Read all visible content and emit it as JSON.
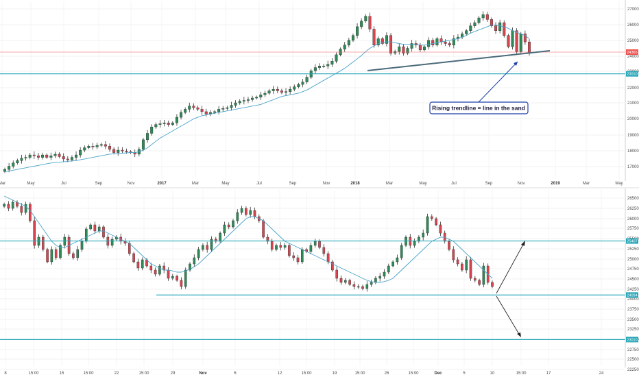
{
  "chart_data": [
    {
      "type": "candlestick",
      "title": "",
      "xlabel": "",
      "ylabel": "",
      "ylim": [
        16500,
        27400
      ],
      "x_axis_labels": [
        "Mar",
        "May",
        "Jul",
        "Sep",
        "Nov",
        "2017",
        "Mar",
        "May",
        "Jul",
        "Sep",
        "Nov",
        "2018",
        "Mar",
        "May",
        "Jul",
        "Sep",
        "Nov",
        "2019",
        "Mar",
        "May"
      ],
      "y_axis_labels": [
        "27000",
        "26000",
        "25000",
        "24000",
        "23000",
        "22000",
        "21000",
        "20000",
        "19000",
        "18000",
        "17000"
      ],
      "series_close": [
        17050,
        17250,
        17450,
        17600,
        17750,
        17800,
        17950,
        17900,
        17800,
        17950,
        17800,
        17900,
        18000,
        17850,
        17700,
        17650,
        17800,
        17950,
        18250,
        18400,
        18500,
        18450,
        18550,
        18600,
        18500,
        18300,
        18100,
        18250,
        18200,
        18150,
        18100,
        18000,
        18300,
        18900,
        19300,
        19700,
        19850,
        19900,
        19950,
        19850,
        19950,
        20300,
        20600,
        20800,
        21000,
        20900,
        20800,
        20650,
        20500,
        20600,
        20650,
        20800,
        20850,
        20900,
        21050,
        21200,
        21300,
        21350,
        21400,
        21500,
        21550,
        21700,
        21800,
        21950,
        22050,
        21950,
        21850,
        21900,
        22050,
        22200,
        22350,
        22500,
        22800,
        23200,
        23400,
        23500,
        23500,
        23600,
        23800,
        24200,
        24550,
        24800,
        25100,
        25400,
        25950,
        26300,
        26600,
        25800,
        24800,
        25200,
        24900,
        25400,
        24300,
        24400,
        24700,
        24300,
        24600,
        24900,
        24800,
        24500,
        24700,
        25100,
        24800,
        25200,
        25000,
        24900,
        24800,
        25200,
        25300,
        25500,
        25700,
        26000,
        26200,
        26500,
        26700,
        26400,
        26000,
        25700,
        26200,
        25400,
        24700,
        25700,
        24400,
        25500,
        25000,
        24300
      ],
      "moving_average": [
        16900,
        16950,
        17000,
        17050,
        17100,
        17150,
        17200,
        17250,
        17300,
        17350,
        17400,
        17450,
        17480,
        17500,
        17520,
        17550,
        17580,
        17600,
        17650,
        17700,
        17750,
        17800,
        17850,
        17900,
        17950,
        18000,
        18020,
        18040,
        18060,
        18080,
        18100,
        18100,
        18150,
        18250,
        18400,
        18600,
        18800,
        19000,
        19150,
        19300,
        19450,
        19600,
        19750,
        19900,
        20050,
        20200,
        20300,
        20400,
        20450,
        20500,
        20550,
        20600,
        20650,
        20700,
        20750,
        20800,
        20850,
        20900,
        20950,
        21000,
        21050,
        21100,
        21200,
        21300,
        21400,
        21500,
        21600,
        21650,
        21700,
        21750,
        21800,
        21900,
        22000,
        22150,
        22300,
        22450,
        22600,
        22750,
        22900,
        23050,
        23200,
        23350,
        23550,
        23750,
        23950,
        24150,
        24400,
        24600,
        24750,
        24900,
        24950,
        25000,
        25000,
        24950,
        24900,
        24850,
        24850,
        24850,
        24850,
        24800,
        24800,
        24850,
        24900,
        24950,
        25000,
        25050,
        25100,
        25150,
        25200,
        25300,
        25400,
        25550,
        25650,
        25750,
        25850,
        25950,
        26050,
        26050,
        26000,
        25950,
        25850,
        25700,
        25600,
        25500,
        25400,
        25200
      ],
      "levels": [
        {
          "label": "24365",
          "value": 24365,
          "color": "#ef5350"
        },
        {
          "label": "23010",
          "value": 23010,
          "color": "#26a6b8"
        }
      ],
      "annotations": [
        {
          "text": "Rising trendline = line in the sand"
        }
      ]
    },
    {
      "type": "candlestick",
      "title": "",
      "xlabel": "",
      "ylabel": "",
      "ylim": [
        22400,
        26600
      ],
      "x_axis_labels": [
        "8",
        "15:00",
        "15",
        "15:00",
        "22",
        "15:00",
        "29",
        "Nov",
        "6",
        "12",
        "15:00",
        "19",
        "15:00",
        "26",
        "15:00",
        "Dec",
        "5",
        "10",
        "15:00",
        "17",
        "24"
      ],
      "y_axis_labels": [
        "26500",
        "26250",
        "26000",
        "25750",
        "25500",
        "25250",
        "25000",
        "24750",
        "24500",
        "24250",
        "24000",
        "23750",
        "23500",
        "23250",
        "23000",
        "22750",
        "22500",
        "22250"
      ],
      "series_close": [
        26300,
        26200,
        26350,
        26250,
        26100,
        26300,
        25900,
        25300,
        25500,
        25200,
        24900,
        25200,
        25000,
        25300,
        25500,
        25100,
        25000,
        25200,
        25400,
        25700,
        25800,
        25650,
        25750,
        25500,
        25300,
        25450,
        25500,
        25400,
        25350,
        25100,
        24900,
        24750,
        24950,
        24800,
        24700,
        24600,
        24800,
        24700,
        24500,
        24550,
        24450,
        24300,
        24700,
        24850,
        25000,
        25200,
        25300,
        25200,
        25450,
        25400,
        25600,
        25800,
        25750,
        25900,
        26100,
        26200,
        26050,
        26150,
        26000,
        25900,
        25500,
        25400,
        25200,
        25300,
        25250,
        25300,
        25050,
        25000,
        24900,
        25200,
        25150,
        25300,
        25400,
        25250,
        25100,
        24900,
        24700,
        24500,
        24400,
        24450,
        24350,
        24300,
        24300,
        24250,
        24350,
        24400,
        24500,
        24550,
        24650,
        24800,
        24900,
        25000,
        25300,
        25500,
        25300,
        25400,
        25500,
        25600,
        26000,
        25950,
        25800,
        25600,
        25400,
        25200,
        24950,
        24850,
        24700,
        24950,
        24500,
        24450,
        24350,
        24800,
        24400,
        24300
      ],
      "moving_average": [
        26500,
        26450,
        26400,
        26350,
        26300,
        26250,
        26150,
        26000,
        25850,
        25700,
        25550,
        25400,
        25300,
        25250,
        25250,
        25300,
        25350,
        25400,
        25450,
        25500,
        25550,
        25600,
        25650,
        25650,
        25600,
        25550,
        25500,
        25450,
        25400,
        25350,
        25250,
        25150,
        25050,
        24950,
        24850,
        24800,
        24750,
        24700,
        24700,
        24680,
        24650,
        24650,
        24680,
        24720,
        24780,
        24850,
        24950,
        25050,
        25150,
        25250,
        25350,
        25450,
        25550,
        25650,
        25750,
        25850,
        25950,
        26000,
        26000,
        25950,
        25900,
        25800,
        25700,
        25600,
        25500,
        25400,
        25350,
        25300,
        25250,
        25200,
        25150,
        25100,
        25050,
        25000,
        24950,
        24900,
        24850,
        24800,
        24750,
        24700,
        24650,
        24600,
        24550,
        24500,
        24450,
        24420,
        24400,
        24400,
        24420,
        24450,
        24500,
        24600,
        24700,
        24800,
        24900,
        25000,
        25100,
        25200,
        25300,
        25400,
        25450,
        25500,
        25500,
        25450,
        25400,
        25300,
        25200,
        25100,
        25000,
        24900,
        24800,
        24700,
        24600,
        24500
      ],
      "levels": [
        {
          "label": "25407",
          "value": 25407,
          "color": "#26a6b8"
        },
        {
          "label": "24094",
          "value": 24094,
          "color": "#26a6b8"
        },
        {
          "label": "23010",
          "value": 23010,
          "color": "#26a6b8"
        }
      ],
      "annotations": []
    }
  ],
  "colors": {
    "up": "#2e8b57",
    "down": "#d64550",
    "ma": "#4aa3c8",
    "level": "#26a6b8",
    "trend": "#4a6a7a",
    "callout": "#1a3ea8"
  }
}
